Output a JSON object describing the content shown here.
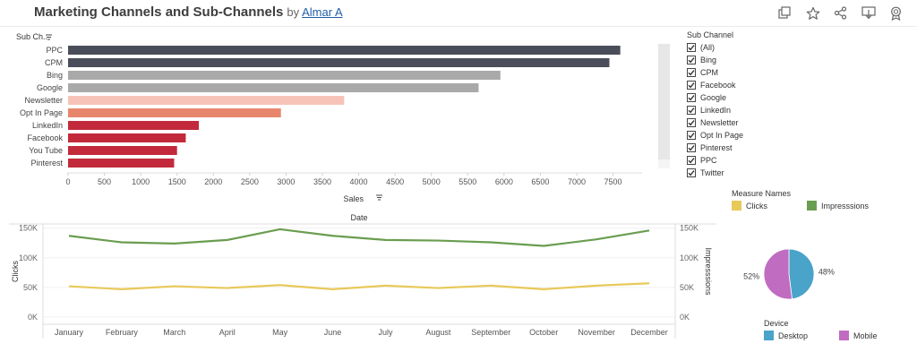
{
  "header": {
    "title": "Marketing Channels and Sub-Channels",
    "by": "by",
    "author": "Almar A"
  },
  "colors": {
    "dark": "#4a4e5a",
    "grey": "#a9a9a9",
    "light_pink": "#f7c3b8",
    "salmon": "#e8866d",
    "red": "#c22a3c",
    "clicks": "#e8c95a",
    "impressions": "#6a9d50",
    "desktop": "#4aa3c8",
    "mobile": "#c06cc0"
  },
  "chart_data": [
    {
      "type": "bar",
      "orientation": "horizontal",
      "categories": [
        "PPC",
        "CPM",
        "Bing",
        "Google",
        "Newsletter",
        "Opt In Page",
        "LinkedIn",
        "Facebook",
        "You Tube",
        "Pinterest"
      ],
      "values": [
        7600,
        7450,
        5950,
        5650,
        3800,
        2930,
        1800,
        1620,
        1500,
        1460
      ],
      "bar_colors": [
        "#4a4e5a",
        "#4a4e5a",
        "#a9a9a9",
        "#a9a9a9",
        "#f7c3b8",
        "#e8866d",
        "#c22a3c",
        "#c22a3c",
        "#c22a3c",
        "#c22a3c"
      ],
      "ylabel": "Sub Ch..",
      "xlabel": "Sales",
      "xlim": [
        0,
        7900
      ],
      "xticks": [
        0,
        500,
        1000,
        1500,
        2000,
        2500,
        3000,
        3500,
        4000,
        4500,
        5000,
        5500,
        6000,
        6500,
        7000,
        7500
      ]
    },
    {
      "type": "line",
      "title": "Date",
      "categories": [
        "January",
        "February",
        "March",
        "April",
        "May",
        "June",
        "July",
        "August",
        "September",
        "October",
        "November",
        "December"
      ],
      "series": [
        {
          "name": "Impresssions",
          "axis": "right",
          "values": [
            137000,
            126000,
            124000,
            130000,
            148000,
            137000,
            130000,
            129000,
            126000,
            120000,
            131000,
            146000
          ]
        },
        {
          "name": "Clicks",
          "axis": "left",
          "values": [
            52000,
            47000,
            52000,
            49000,
            54000,
            47000,
            53000,
            49000,
            53000,
            47000,
            53000,
            57000
          ]
        }
      ],
      "ylabel_left": "Clicks",
      "ylabel_right": "Impresssions",
      "ylim": [
        0,
        160000
      ],
      "yticks_left": [
        "0K",
        "50K",
        "100K",
        "150K"
      ],
      "yticks_right": [
        "0K",
        "50K",
        "100K",
        "150K"
      ]
    },
    {
      "type": "pie",
      "slices": [
        {
          "name": "Desktop",
          "value": 48,
          "label": "48%"
        },
        {
          "name": "Mobile",
          "value": 52,
          "label": "52%"
        }
      ]
    }
  ],
  "filter": {
    "title": "Sub Channel",
    "items": [
      "(All)",
      "Bing",
      "CPM",
      "Facebook",
      "Google",
      "LinkedIn",
      "Newsletter",
      "Opt In Page",
      "Pinterest",
      "PPC",
      "Twitter"
    ]
  },
  "measure_legend": {
    "title": "Measure Names",
    "items": [
      {
        "label": "Clicks",
        "color": "#e8c95a"
      },
      {
        "label": "Impresssions",
        "color": "#6a9d50"
      }
    ]
  },
  "device_legend": {
    "title": "Device",
    "items": [
      {
        "label": "Desktop",
        "color": "#4aa3c8"
      },
      {
        "label": "Mobile",
        "color": "#c06cc0"
      }
    ]
  },
  "icons": [
    "duplicate-icon",
    "star-icon",
    "share-icon",
    "download-icon",
    "badge-icon"
  ]
}
